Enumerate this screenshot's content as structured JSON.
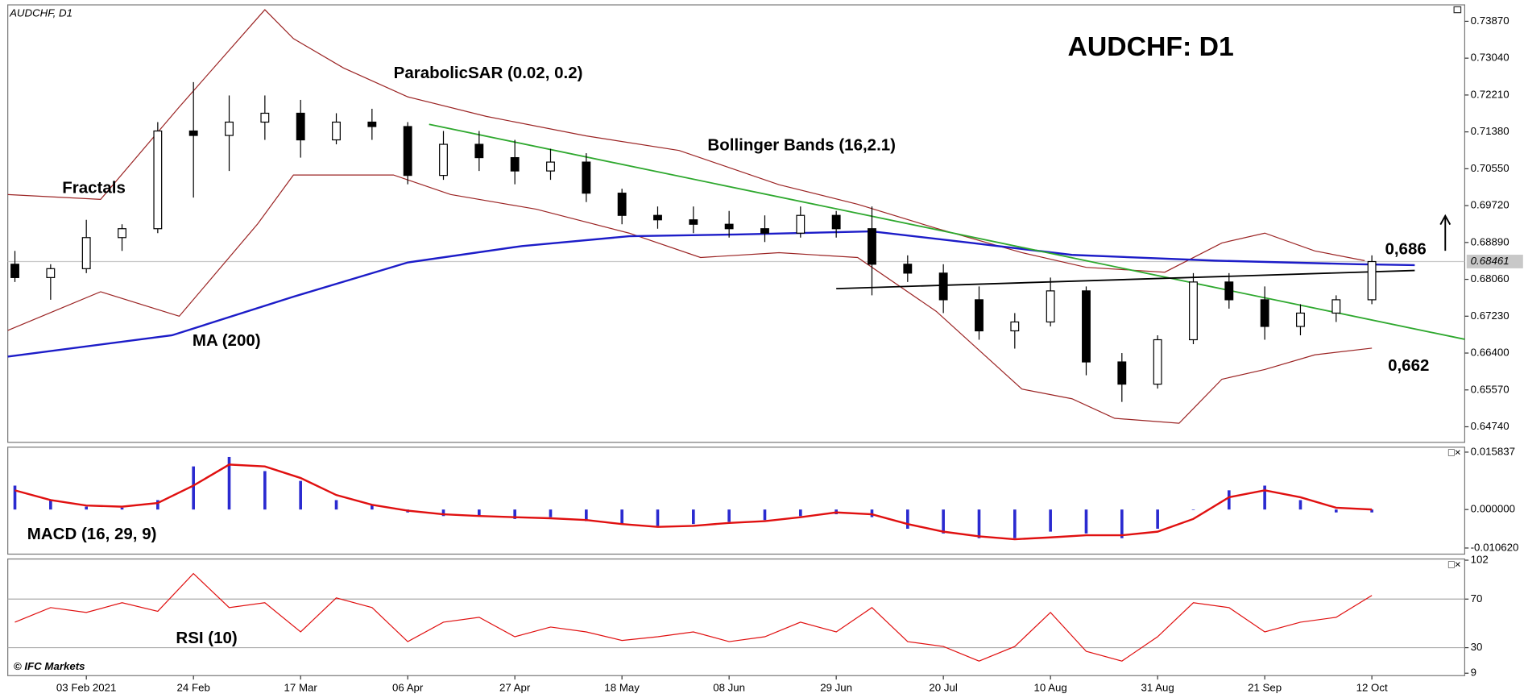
{
  "chart_data": [
    {
      "type": "candlestick",
      "title": "AUDCHF: D1",
      "subtitle": "AUDCHF, D1",
      "x": [
        -10,
        -5,
        0,
        5,
        10,
        15,
        20,
        25,
        30,
        35,
        40,
        45,
        50,
        55,
        60,
        65,
        70,
        75,
        80,
        85,
        90,
        95,
        100,
        105,
        110,
        115,
        120,
        125,
        130,
        135,
        140,
        145,
        150,
        155,
        160,
        165,
        170,
        175,
        180
      ],
      "open": [
        0.684,
        0.681,
        0.683,
        0.69,
        0.692,
        0.714,
        0.713,
        0.716,
        0.718,
        0.712,
        0.716,
        0.715,
        0.704,
        0.711,
        0.708,
        0.705,
        0.707,
        0.7,
        0.695,
        0.694,
        0.693,
        0.692,
        0.691,
        0.695,
        0.692,
        0.684,
        0.682,
        0.676,
        0.669,
        0.671,
        0.678,
        0.662,
        0.657,
        0.667,
        0.68,
        0.676,
        0.67,
        0.673,
        0.676
      ],
      "high": [
        0.687,
        0.684,
        0.694,
        0.693,
        0.716,
        0.725,
        0.722,
        0.722,
        0.721,
        0.718,
        0.719,
        0.716,
        0.714,
        0.714,
        0.712,
        0.71,
        0.709,
        0.701,
        0.697,
        0.697,
        0.696,
        0.695,
        0.697,
        0.696,
        0.697,
        0.686,
        0.684,
        0.679,
        0.673,
        0.681,
        0.679,
        0.664,
        0.668,
        0.682,
        0.682,
        0.679,
        0.675,
        0.677,
        0.686
      ],
      "low": [
        0.68,
        0.676,
        0.682,
        0.687,
        0.691,
        0.699,
        0.705,
        0.712,
        0.708,
        0.711,
        0.712,
        0.702,
        0.703,
        0.705,
        0.702,
        0.703,
        0.698,
        0.693,
        0.692,
        0.691,
        0.69,
        0.689,
        0.69,
        0.69,
        0.677,
        0.68,
        0.673,
        0.667,
        0.665,
        0.67,
        0.659,
        0.653,
        0.656,
        0.666,
        0.674,
        0.667,
        0.668,
        0.671,
        0.675
      ],
      "close": [
        0.681,
        0.683,
        0.69,
        0.692,
        0.714,
        0.713,
        0.716,
        0.718,
        0.712,
        0.716,
        0.715,
        0.704,
        0.711,
        0.708,
        0.705,
        0.707,
        0.7,
        0.695,
        0.694,
        0.693,
        0.692,
        0.691,
        0.695,
        0.692,
        0.684,
        0.682,
        0.676,
        0.669,
        0.671,
        0.678,
        0.662,
        0.657,
        0.667,
        0.68,
        0.676,
        0.67,
        0.673,
        0.676,
        0.6846
      ],
      "last_price": 0.68461,
      "moving_average": {
        "name": "MA (200)",
        "color": "#1c1cc8",
        "x": [
          -11,
          12,
          29,
          45,
          61,
          76,
          91,
          110,
          124,
          138,
          158,
          178,
          186
        ],
        "values": [
          0.6632,
          0.668,
          0.6767,
          0.6844,
          0.6881,
          0.6903,
          0.6907,
          0.6914,
          0.6888,
          0.6861,
          0.6848,
          0.684,
          0.6838
        ]
      },
      "bands": {
        "name": "Bollinger Bands (16,2.1)",
        "color": "#9b2424",
        "upper": {
          "x": [
            -11,
            2,
            13,
            25,
            29,
            36,
            45,
            56,
            70,
            83,
            97,
            108,
            119,
            131,
            140,
            151,
            159,
            165,
            172,
            179
          ],
          "values": [
            0.6997,
            0.6986,
            0.7194,
            0.7413,
            0.7348,
            0.7282,
            0.7217,
            0.7173,
            0.7129,
            0.7096,
            0.7019,
            0.6975,
            0.6921,
            0.6866,
            0.6833,
            0.6822,
            0.6888,
            0.691,
            0.687,
            0.6848
          ]
        },
        "lower": {
          "x": [
            -11,
            2,
            13,
            24,
            29,
            43,
            51,
            63,
            76,
            86,
            97,
            108,
            119,
            131,
            138,
            144,
            153,
            159,
            165,
            172,
            180
          ],
          "values": [
            0.6691,
            0.6778,
            0.6723,
            0.6931,
            0.7041,
            0.7041,
            0.6997,
            0.6964,
            0.691,
            0.6855,
            0.6866,
            0.6855,
            0.6734,
            0.6559,
            0.6537,
            0.6493,
            0.6482,
            0.6581,
            0.6603,
            0.6636,
            0.6651
          ]
        }
      },
      "trendlines": [
        {
          "color": "#2ea82e",
          "x": [
            48,
            193
          ],
          "values": [
            0.7155,
            0.6671
          ]
        },
        {
          "color": "#000000",
          "x": [
            105,
            186
          ],
          "values": [
            0.6785,
            0.6826
          ]
        }
      ],
      "annotations": [
        "ParabolicSAR (0.02, 0.2)",
        "Fractals",
        "0,686",
        "0,662"
      ],
      "xlim": [
        -11,
        193
      ],
      "xticks": [
        {
          "value": 0,
          "label": "03 Feb 2021"
        },
        {
          "value": 15,
          "label": "24 Feb"
        },
        {
          "value": 30,
          "label": "17 Mar"
        },
        {
          "value": 45,
          "label": "06 Apr"
        },
        {
          "value": 60,
          "label": "27 Apr"
        },
        {
          "value": 75,
          "label": "18 May"
        },
        {
          "value": 90,
          "label": "08 Jun"
        },
        {
          "value": 105,
          "label": "29 Jun"
        },
        {
          "value": 120,
          "label": "20 Jul"
        },
        {
          "value": 135,
          "label": "10 Aug"
        },
        {
          "value": 150,
          "label": "31 Aug"
        },
        {
          "value": 165,
          "label": "21 Sep"
        },
        {
          "value": 180,
          "label": "12 Oct"
        }
      ],
      "ylim": [
        0.6439,
        0.7424
      ],
      "yticks": [
        {
          "value": 0.7387,
          "label": "0.73870"
        },
        {
          "value": 0.7304,
          "label": "0.73040"
        },
        {
          "value": 0.7221,
          "label": "0.72210"
        },
        {
          "value": 0.7138,
          "label": "0.71380"
        },
        {
          "value": 0.7055,
          "label": "0.70550"
        },
        {
          "value": 0.6972,
          "label": "0.69720"
        },
        {
          "value": 0.6889,
          "label": "0.68890"
        },
        {
          "value": 0.6806,
          "label": "0.68060"
        },
        {
          "value": 0.6723,
          "label": "0.67230"
        },
        {
          "value": 0.664,
          "label": "0.66400"
        },
        {
          "value": 0.6557,
          "label": "0.65570"
        },
        {
          "value": 0.6474,
          "label": "0.64740"
        }
      ]
    },
    {
      "type": "macd",
      "title": "MACD (16, 29, 9)",
      "x": [
        -10,
        -5,
        0,
        5,
        10,
        15,
        20,
        25,
        30,
        35,
        40,
        45,
        50,
        55,
        60,
        65,
        70,
        75,
        80,
        85,
        90,
        95,
        100,
        105,
        110,
        115,
        120,
        125,
        130,
        135,
        140,
        145,
        150,
        155,
        160,
        165,
        170,
        175,
        180
      ],
      "histogram": {
        "color": "#2a2ad0",
        "values": [
          0.0066,
          0.0026,
          0.0008,
          0.0005,
          0.0026,
          0.0119,
          0.0145,
          0.0106,
          0.0079,
          0.0026,
          0.0013,
          -0.0008,
          -0.0018,
          -0.0018,
          -0.0026,
          -0.0021,
          -0.0032,
          -0.004,
          -0.0045,
          -0.004,
          -0.0034,
          -0.0029,
          -0.0018,
          -0.0013,
          -0.0021,
          -0.0053,
          -0.0066,
          -0.0079,
          -0.0079,
          -0.0061,
          -0.0066,
          -0.0079,
          -0.0053,
          0,
          0.0053,
          0.0066,
          0.0026,
          -0.0008,
          -0.0008
        ]
      },
      "signal": {
        "color": "#e01010",
        "values": [
          0.0053,
          0.0026,
          0.0011,
          0.0008,
          0.0018,
          0.0066,
          0.0124,
          0.0119,
          0.0087,
          0.004,
          0.0013,
          -0.0003,
          -0.0013,
          -0.0018,
          -0.0021,
          -0.0024,
          -0.0029,
          -0.004,
          -0.0048,
          -0.0045,
          -0.0037,
          -0.0032,
          -0.0021,
          -0.0008,
          -0.0013,
          -0.004,
          -0.0061,
          -0.0074,
          -0.0082,
          -0.0077,
          -0.0071,
          -0.0071,
          -0.0061,
          -0.0026,
          0.0034,
          0.0053,
          0.0034,
          0.0005,
          0
        ]
      },
      "ylim": [
        -0.0123,
        0.0172
      ],
      "yticks": [
        {
          "value": 0.015837,
          "label": "0.015837"
        },
        {
          "value": 0,
          "label": "0.000000"
        },
        {
          "value": -0.01062,
          "label": "-0.010620"
        }
      ]
    },
    {
      "type": "rsi",
      "title": "RSI (10)",
      "credit": "© IFC Markets",
      "color": "#e01010",
      "x": [
        -10,
        -5,
        0,
        5,
        10,
        15,
        20,
        25,
        30,
        35,
        40,
        45,
        50,
        55,
        60,
        65,
        70,
        75,
        80,
        85,
        90,
        95,
        100,
        105,
        110,
        115,
        120,
        125,
        130,
        135,
        140,
        145,
        150,
        155,
        160,
        165,
        170,
        175,
        180
      ],
      "values": [
        51,
        63,
        59,
        67,
        60,
        91,
        63,
        67,
        43,
        71,
        63,
        35,
        51,
        55,
        39,
        47,
        43,
        36,
        39,
        43,
        35,
        39,
        51,
        43,
        63,
        35,
        31,
        19,
        31,
        59,
        27,
        19,
        39,
        67,
        63,
        43,
        51,
        55,
        73
      ],
      "ylim": [
        7,
        103
      ],
      "yticks": [
        102,
        70,
        30,
        9
      ],
      "grid": [
        70,
        30
      ]
    }
  ]
}
